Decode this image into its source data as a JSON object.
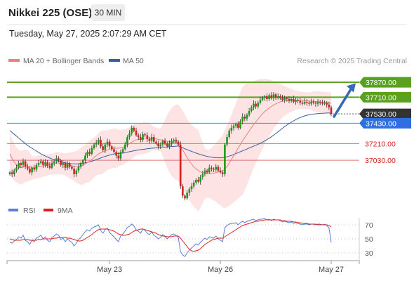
{
  "header": {
    "title": "Nikkei 225 (OSE)",
    "timeframe": "30 MIN"
  },
  "datetime": "Tuesday, May 27, 2025 2:07:29 AM CET",
  "legend": {
    "ma20_bb": "MA 20 + Bollinger Bands",
    "ma50": "MA 50",
    "credit": "Research © 2025 Trading Central"
  },
  "rsi_legend": {
    "rsi": "RSI",
    "ma9": "9MA"
  },
  "colors": {
    "resistance": "#5aa11f",
    "support": "#e0716f",
    "pivot": "#4a7ee0",
    "current": "#333333",
    "candle_up": "#1a9a1a",
    "candle_down": "#d62020",
    "bb_fill": "#fde0e0",
    "ma20": "#f08080",
    "ma50": "#3a5f9f",
    "rsi": "#5b7fd6",
    "rsi_ma": "#e02020",
    "arrow": "#3568b8"
  },
  "chart_data": {
    "type": "candlestick",
    "y_range": [
      36600,
      38000
    ],
    "levels": [
      {
        "label": "37870.00",
        "value": 37870,
        "kind": "resistance"
      },
      {
        "label": "37710.00",
        "value": 37710,
        "kind": "resistance"
      },
      {
        "label": "37530.00",
        "value": 37530,
        "kind": "current"
      },
      {
        "label": "37430.00",
        "value": 37430,
        "kind": "pivot"
      },
      {
        "label": "37210.00",
        "value": 37210,
        "kind": "support"
      },
      {
        "label": "37030.00",
        "value": 37030,
        "kind": "support"
      }
    ],
    "x_ticks": [
      {
        "label": "May 23",
        "index": 45
      },
      {
        "label": "May 26",
        "index": 95
      },
      {
        "label": "May 27",
        "index": 145
      }
    ],
    "close": [
      36900,
      36880,
      36920,
      36950,
      37000,
      36980,
      37020,
      36960,
      36940,
      36900,
      36950,
      36930,
      36980,
      37000,
      37020,
      36980,
      37010,
      36970,
      36950,
      37000,
      37020,
      37050,
      37030,
      36980,
      37000,
      36950,
      36990,
      36960,
      36940,
      36880,
      36920,
      36960,
      36990,
      37030,
      37080,
      37120,
      37100,
      37160,
      37200,
      37220,
      37250,
      37180,
      37140,
      37200,
      37230,
      37180,
      37150,
      37120,
      37080,
      37050,
      37120,
      37150,
      37200,
      37280,
      37320,
      37380,
      37350,
      37300,
      37280,
      37250,
      37310,
      37300,
      37260,
      37240,
      37280,
      37230,
      37210,
      37180,
      37200,
      37240,
      37210,
      37180,
      37210,
      37240,
      37250,
      37230,
      37200,
      36750,
      36650,
      36620,
      36680,
      36720,
      36750,
      36790,
      36820,
      36800,
      36850,
      36880,
      36920,
      36900,
      36950,
      36940,
      36930,
      36960,
      36920,
      36900,
      36880,
      37200,
      37280,
      37350,
      37380,
      37400,
      37420,
      37380,
      37450,
      37500,
      37480,
      37520,
      37560,
      37600,
      37640,
      37610,
      37650,
      37680,
      37700,
      37720,
      37690,
      37730,
      37700,
      37740,
      37710,
      37720,
      37700,
      37680,
      37700,
      37690,
      37670,
      37690,
      37660,
      37680,
      37670,
      37650,
      37640,
      37660,
      37650,
      37640,
      37660,
      37650,
      37640,
      37660,
      37650,
      37640,
      37650,
      37630,
      37600,
      37530
    ],
    "ma20": [
      37100,
      37050,
      37010,
      36980,
      36960,
      36950,
      36960,
      36970,
      36970,
      36960,
      36950,
      36950,
      36955,
      36960,
      36965,
      36970,
      36975,
      36980,
      36985,
      36990,
      36995,
      37000,
      37000,
      36995,
      36990,
      36985,
      36980,
      36975,
      36970,
      36965,
      36960,
      36960,
      36965,
      36975,
      36990,
      37005,
      37020,
      37040,
      37060,
      37080,
      37100,
      37110,
      37120,
      37130,
      37140,
      37150,
      37155,
      37160,
      37160,
      37160,
      37165,
      37170,
      37180,
      37195,
      37210,
      37225,
      37240,
      37250,
      37255,
      37260,
      37265,
      37270,
      37270,
      37270,
      37270,
      37265,
      37260,
      37255,
      37250,
      37245,
      37240,
      37235,
      37230,
      37228,
      37226,
      37224,
      37222,
      37180,
      37140,
      37100,
      37060,
      37020,
      36990,
      36960,
      36940,
      36920,
      36905,
      36895,
      36890,
      36885,
      36885,
      36888,
      36892,
      36898,
      36905,
      36910,
      36912,
      36935,
      36965,
      37000,
      37040,
      37080,
      37120,
      37160,
      37200,
      37240,
      37275,
      37310,
      37345,
      37380,
      37415,
      37445,
      37475,
      37505,
      37530,
      37555,
      37575,
      37595,
      37610,
      37625,
      37638,
      37650,
      37660,
      37665,
      37670,
      37672,
      37674,
      37675,
      37676,
      37677,
      37677,
      37676,
      37675,
      37673,
      37671,
      37669,
      37667,
      37665,
      37663,
      37661,
      37659,
      37657,
      37655,
      37652,
      37648,
      37642
    ],
    "ma50": [
      37350,
      37330,
      37310,
      37290,
      37270,
      37250,
      37230,
      37210,
      37190,
      37175,
      37160,
      37145,
      37130,
      37115,
      37100,
      37088,
      37076,
      37065,
      37055,
      37045,
      37036,
      37028,
      37020,
      37013,
      37007,
      37002,
      36998,
      36995,
      36993,
      36992,
      36992,
      36993,
      36995,
      36998,
      37002,
      37007,
      37013,
      37020,
      37028,
      37037,
      37046,
      37055,
      37064,
      37072,
      37080,
      37086,
      37092,
      37097,
      37101,
      37104,
      37107,
      37110,
      37114,
      37118,
      37123,
      37128,
      37133,
      37137,
      37141,
      37145,
      37148,
      37151,
      37154,
      37157,
      37160,
      37162,
      37164,
      37166,
      37168,
      37170,
      37172,
      37174,
      37176,
      37178,
      37180,
      37182,
      37184,
      37175,
      37165,
      37155,
      37145,
      37135,
      37126,
      37117,
      37108,
      37100,
      37092,
      37085,
      37078,
      37072,
      37067,
      37063,
      37060,
      37058,
      37057,
      37057,
      37058,
      37062,
      37068,
      37075,
      37083,
      37092,
      37102,
      37112,
      37122,
      37132,
      37142,
      37152,
      37162,
      37172,
      37182,
      37192,
      37202,
      37213,
      37225,
      37238,
      37252,
      37267,
      37283,
      37300,
      37318,
      37337,
      37356,
      37375,
      37393,
      37410,
      37426,
      37441,
      37455,
      37468,
      37480,
      37491,
      37500,
      37508,
      37515,
      37520,
      37525,
      37528,
      37531,
      37533,
      37535,
      37537,
      37538,
      37539,
      37539,
      37538
    ],
    "rsi": [
      45,
      44,
      47,
      49,
      53,
      51,
      55,
      48,
      46,
      42,
      48,
      46,
      51,
      53,
      55,
      50,
      53,
      48,
      46,
      52,
      54,
      57,
      55,
      49,
      51,
      46,
      50,
      47,
      45,
      40,
      44,
      49,
      52,
      56,
      60,
      63,
      61,
      65,
      67,
      68,
      70,
      62,
      58,
      63,
      65,
      59,
      56,
      53,
      49,
      46,
      54,
      57,
      61,
      66,
      68,
      71,
      68,
      63,
      61,
      58,
      64,
      62,
      58,
      56,
      60,
      55,
      53,
      50,
      52,
      56,
      53,
      50,
      53,
      56,
      57,
      55,
      52,
      32,
      27,
      25,
      30,
      34,
      37,
      40,
      43,
      41,
      45,
      48,
      51,
      49,
      53,
      52,
      51,
      54,
      50,
      48,
      46,
      66,
      69,
      71,
      72,
      72,
      73,
      70,
      73,
      75,
      73,
      75,
      76,
      77,
      78,
      76,
      77,
      78,
      78,
      79,
      77,
      78,
      76,
      78,
      77,
      77,
      76,
      74,
      75,
      74,
      73,
      74,
      72,
      73,
      72,
      71,
      70,
      71,
      71,
      70,
      71,
      71,
      70,
      71,
      71,
      70,
      71,
      69,
      66,
      45
    ],
    "rsi_ma": [
      50,
      49,
      48,
      48,
      48,
      48,
      49,
      49,
      49,
      48,
      48,
      48,
      48,
      49,
      49,
      50,
      50,
      50,
      50,
      50,
      51,
      51,
      52,
      52,
      52,
      52,
      51,
      51,
      50,
      49,
      48,
      47,
      47,
      48,
      50,
      52,
      54,
      56,
      59,
      61,
      63,
      64,
      64,
      64,
      64,
      63,
      62,
      61,
      59,
      57,
      56,
      55,
      55,
      56,
      57,
      59,
      61,
      62,
      63,
      64,
      64,
      63,
      62,
      61,
      60,
      59,
      58,
      56,
      55,
      54,
      54,
      53,
      53,
      53,
      54,
      54,
      54,
      51,
      47,
      43,
      39,
      35,
      33,
      32,
      33,
      34,
      36,
      39,
      42,
      44,
      46,
      48,
      49,
      50,
      51,
      51,
      51,
      53,
      55,
      57,
      59,
      61,
      63,
      65,
      67,
      69,
      70,
      71,
      72,
      73,
      74,
      75,
      75,
      76,
      76,
      77,
      77,
      77,
      77,
      77,
      77,
      77,
      77,
      76,
      76,
      75,
      75,
      75,
      74,
      74,
      73,
      73,
      72,
      72,
      72,
      71,
      71,
      71,
      71,
      70,
      70,
      70,
      70,
      70,
      69,
      67
    ],
    "rsi_levels": [
      70,
      50,
      30
    ]
  }
}
